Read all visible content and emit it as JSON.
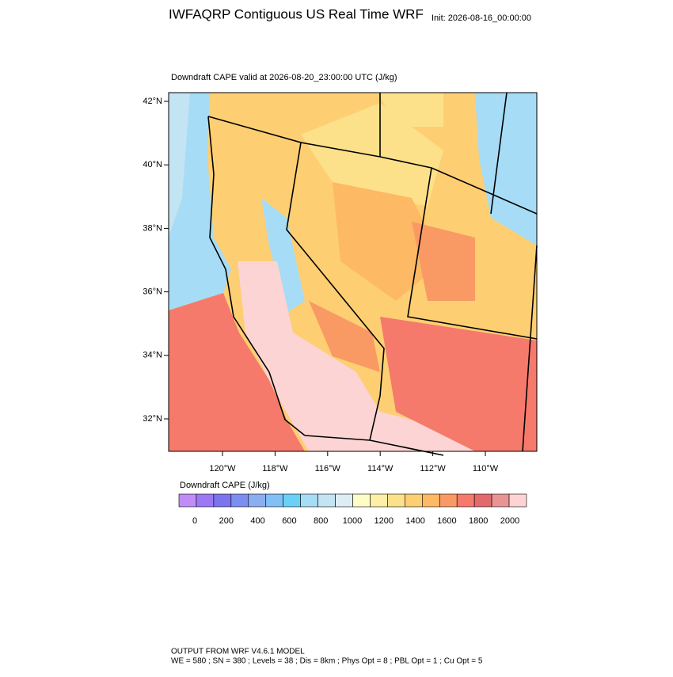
{
  "header": {
    "title": "IWFAQRP Contiguous US Real Time WRF",
    "init": "Init: 2026-08-16_00:00:00"
  },
  "map": {
    "subtitle": "Downdraft CAPE valid at 2026-08-20_23:00:00 UTC   (J/kg)",
    "lat_labels": [
      "42°N",
      "40°N",
      "38°N",
      "36°N",
      "34°N",
      "32°N"
    ],
    "lon_labels": [
      "120°W",
      "118°W",
      "116°W",
      "114°W",
      "112°W",
      "110°W"
    ]
  },
  "colorbar": {
    "title": "Downdraft CAPE  (J/kg)",
    "labels": [
      "0",
      "200",
      "400",
      "600",
      "800",
      "1000",
      "1200",
      "1400",
      "1600",
      "1800",
      "2000"
    ],
    "colors": [
      "#c08cf8",
      "#9c78f4",
      "#7c74ee",
      "#7c8ef0",
      "#8aaef0",
      "#80c0f6",
      "#6ad0f7",
      "#a6dcf5",
      "#c3e4f3",
      "#dceef4",
      "#fefdc7",
      "#fdefa6",
      "#fde18a",
      "#fdcf72",
      "#fdb964",
      "#f99a64",
      "#f57a6c",
      "#e26a6c",
      "#e89494",
      "#fdd4d4"
    ]
  },
  "footer": {
    "line1": "OUTPUT FROM WRF V4.6.1 MODEL",
    "line2": "WE = 580 ; SN = 380 ; Levels = 38 ; Dis = 8km ; Phys Opt = 8 ; PBL Opt = 1 ; Cu Opt = 5"
  }
}
